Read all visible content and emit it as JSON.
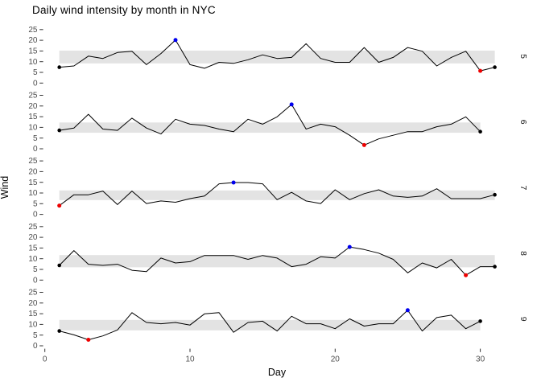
{
  "title": "Daily wind intensity by month in NYC",
  "axes": {
    "x_label": "Day",
    "y_label": "Wind",
    "x_ticks": [
      "0",
      "10",
      "20",
      "30"
    ],
    "y_ticks": [
      "0",
      "5",
      "10",
      "15",
      "20",
      "25"
    ]
  },
  "facet_strip_labels": [
    "5",
    "6",
    "7",
    "8",
    "9"
  ],
  "colors": {
    "line": "#000000",
    "band": "#e3e3e3",
    "max_point": "#0000ee",
    "min_point": "#ee0000",
    "endpoint": "#000000",
    "tick_mark": "#333333",
    "tick_label": "#4d4d4d",
    "strip_label": "#1a1a1a",
    "title": "#000000"
  },
  "chart_data": {
    "type": "line",
    "title": "Daily wind intensity by month in NYC",
    "xlabel": "Day",
    "ylabel": "Wind",
    "xlim": [
      0,
      31
    ],
    "ylim": [
      0,
      25
    ],
    "x_ticks": [
      0,
      10,
      20,
      30
    ],
    "y_ticks": [
      0,
      5,
      10,
      15,
      20,
      25
    ],
    "grid": false,
    "legend": false,
    "facet_layout": "rows, strip labels on right",
    "point_rules": "black dots at first/last day, blue dot at monthly max, red dot at monthly min, gray band = middle wind range",
    "facets": [
      {
        "label": "5",
        "month": 5,
        "days_start": 1,
        "values": [
          7.4,
          8.0,
          12.6,
          11.5,
          14.3,
          14.9,
          8.6,
          13.8,
          20.1,
          8.6,
          6.9,
          9.7,
          9.2,
          10.9,
          13.2,
          11.5,
          12.0,
          18.4,
          11.5,
          9.7,
          9.7,
          16.6,
          9.7,
          12.0,
          16.6,
          14.9,
          8.0,
          12.0,
          14.9,
          5.7,
          7.4
        ],
        "band_low": 9.2,
        "band_high": 15.2,
        "max_day": 9,
        "max_value": 20.1,
        "min_day": 30,
        "min_value": 5.7
      },
      {
        "label": "6",
        "month": 6,
        "days_start": 1,
        "values": [
          8.6,
          9.7,
          16.1,
          9.2,
          8.6,
          14.3,
          9.7,
          6.9,
          13.8,
          11.5,
          10.9,
          9.2,
          8.0,
          13.8,
          11.5,
          14.9,
          20.7,
          9.2,
          11.5,
          10.3,
          6.3,
          1.7,
          4.6,
          6.3,
          8.0,
          8.0,
          10.3,
          11.5,
          14.9,
          8.0
        ],
        "band_low": 7.5,
        "band_high": 12.3,
        "max_day": 17,
        "max_value": 20.7,
        "min_day": 22,
        "min_value": 1.7
      },
      {
        "label": "7",
        "month": 7,
        "days_start": 1,
        "values": [
          4.1,
          9.2,
          9.2,
          10.9,
          4.6,
          10.9,
          5.1,
          6.3,
          5.7,
          7.4,
          8.6,
          14.3,
          14.9,
          14.9,
          14.3,
          6.9,
          10.3,
          6.3,
          5.1,
          11.5,
          6.9,
          9.7,
          11.5,
          8.6,
          8.0,
          8.6,
          12.0,
          7.4,
          7.4,
          7.4,
          9.2
        ],
        "band_low": 6.7,
        "band_high": 11.2,
        "max_day": 13,
        "max_value": 14.9,
        "min_day": 1,
        "min_value": 4.1
      },
      {
        "label": "8",
        "month": 8,
        "days_start": 1,
        "values": [
          6.9,
          13.8,
          7.4,
          6.9,
          7.4,
          4.6,
          4.0,
          10.3,
          8.0,
          8.6,
          11.5,
          11.5,
          11.5,
          9.7,
          11.5,
          10.3,
          6.3,
          7.4,
          10.9,
          10.3,
          15.5,
          14.3,
          12.6,
          9.7,
          3.4,
          8.0,
          5.7,
          9.7,
          2.3,
          6.3,
          6.3
        ],
        "band_low": 6.0,
        "band_high": 11.7,
        "max_day": 21,
        "max_value": 15.5,
        "min_day": 29,
        "min_value": 2.3
      },
      {
        "label": "9",
        "month": 9,
        "days_start": 1,
        "values": [
          6.9,
          5.1,
          2.8,
          4.6,
          7.4,
          15.5,
          10.9,
          10.3,
          10.9,
          9.7,
          14.9,
          15.5,
          6.3,
          10.9,
          11.5,
          6.9,
          13.8,
          10.3,
          10.3,
          8.0,
          12.6,
          9.2,
          10.3,
          10.3,
          16.6,
          6.9,
          13.2,
          14.3,
          8.0,
          11.5
        ],
        "band_low": 7.2,
        "band_high": 12.1,
        "max_day": 25,
        "max_value": 16.6,
        "min_day": 3,
        "min_value": 2.8
      }
    ]
  }
}
